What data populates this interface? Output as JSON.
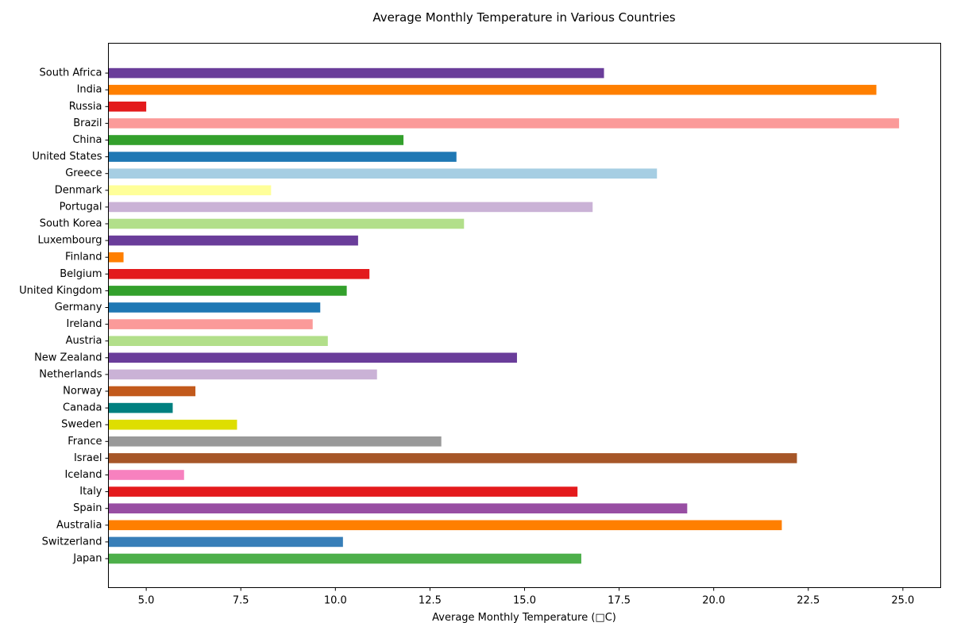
{
  "chart_data": {
    "type": "bar",
    "orientation": "horizontal",
    "title": "Average Monthly Temperature in Various Countries",
    "xlabel": "Average Monthly Temperature (□C)",
    "ylabel": "",
    "xlim": [
      4.0,
      26.0
    ],
    "xticks": [
      5.0,
      7.5,
      10.0,
      12.5,
      15.0,
      17.5,
      20.0,
      22.5,
      25.0
    ],
    "xtick_labels": [
      "5.0",
      "7.5",
      "10.0",
      "12.5",
      "15.0",
      "17.5",
      "20.0",
      "22.5",
      "25.0"
    ],
    "grid": false,
    "legend": "none",
    "categories": [
      "Japan",
      "Switzerland",
      "Australia",
      "Spain",
      "Italy",
      "Iceland",
      "Israel",
      "France",
      "Sweden",
      "Canada",
      "Norway",
      "Netherlands",
      "New Zealand",
      "Austria",
      "Ireland",
      "Germany",
      "United Kingdom",
      "Belgium",
      "Finland",
      "Luxembourg",
      "South Korea",
      "Portugal",
      "Denmark",
      "Greece",
      "United States",
      "China",
      "Brazil",
      "Russia",
      "India",
      "South Africa"
    ],
    "values": [
      16.5,
      10.2,
      21.8,
      19.3,
      16.4,
      6.0,
      22.2,
      12.8,
      7.4,
      5.7,
      6.3,
      11.1,
      14.8,
      9.8,
      9.4,
      9.6,
      10.3,
      10.9,
      4.4,
      10.6,
      13.4,
      16.8,
      8.3,
      18.5,
      13.2,
      11.8,
      24.9,
      5.0,
      24.3,
      17.1
    ],
    "colors": [
      "#4daf4a",
      "#377eb8",
      "#ff7f00",
      "#984ea3",
      "#e41a1c",
      "#f781bf",
      "#a65628",
      "#999999",
      "#dede00",
      "#008080",
      "#c25a1c",
      "#cab2d6",
      "#6a3d9a",
      "#b2df8a",
      "#fb9a99",
      "#1f78b4",
      "#33a02c",
      "#e31a1c",
      "#ff7f00",
      "#6a3d9a",
      "#b2df8a",
      "#cab2d6",
      "#ffff99",
      "#a6cee3",
      "#1f78b4",
      "#33a02c",
      "#fb9a99",
      "#e31a1c",
      "#ff7f00",
      "#6a3d9a"
    ]
  }
}
